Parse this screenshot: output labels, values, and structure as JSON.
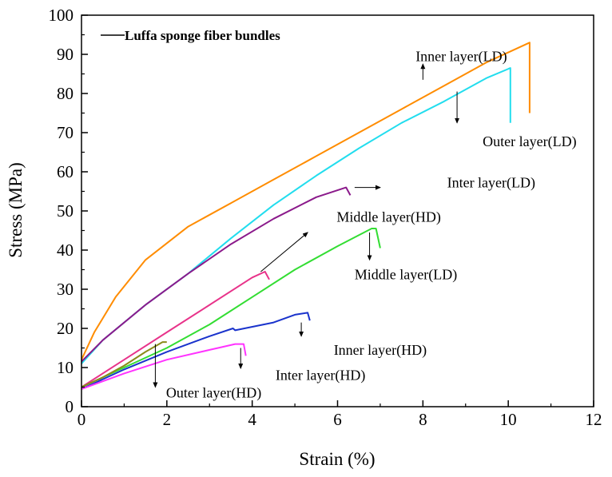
{
  "chart_data": {
    "type": "line",
    "title": "",
    "xlabel": "Strain (%)",
    "ylabel": "Stress (MPa)",
    "xlim": [
      0,
      12
    ],
    "ylim": [
      0,
      100
    ],
    "xticks": [
      0,
      2,
      4,
      6,
      8,
      10,
      12
    ],
    "yticks": [
      0,
      10,
      20,
      30,
      40,
      50,
      60,
      70,
      80,
      90,
      100
    ],
    "grid": false,
    "legend": {
      "position": "top-left",
      "entries": [
        "Luffa sponge fiber bundles"
      ]
    },
    "series": [
      {
        "name": "Inner layer(LD)",
        "color": "#FF8C00",
        "x": [
          0,
          0.3,
          0.8,
          1.5,
          2.5,
          3.5,
          4.5,
          5.5,
          6.5,
          7.5,
          8.5,
          9.5,
          10.5,
          10.5
        ],
        "y": [
          12,
          19,
          28,
          37.5,
          46,
          52,
          58,
          64,
          70,
          76,
          82,
          88,
          93,
          75
        ]
      },
      {
        "name": "Outer layer(LD)",
        "color": "#22DDEE",
        "x": [
          0,
          0.5,
          1.5,
          2.5,
          3.5,
          4.5,
          5.5,
          6.5,
          7.5,
          8.5,
          9.5,
          10.05,
          10.05
        ],
        "y": [
          11,
          17,
          26,
          34,
          43,
          51.5,
          59,
          66,
          72.5,
          78,
          84,
          86.5,
          72.5
        ]
      },
      {
        "name": "Inter layer(LD)",
        "color": "#8B1A8B",
        "x": [
          0,
          0.5,
          1.5,
          2.5,
          3.5,
          4.5,
          5.5,
          6.2,
          6.3
        ],
        "y": [
          11.5,
          17,
          26,
          34,
          41.5,
          48,
          53.5,
          56,
          54
        ]
      },
      {
        "name": "Middle layer(HD)",
        "color": "#E8338A",
        "x": [
          0,
          1,
          2,
          3,
          4,
          4.3,
          4.4
        ],
        "y": [
          5,
          12,
          19,
          26,
          33,
          34.5,
          32.5
        ]
      },
      {
        "name": "Middle layer(LD)",
        "color": "#33DD33",
        "x": [
          0,
          1,
          2,
          3,
          4,
          5,
          6,
          6.8,
          6.9,
          7.0
        ],
        "y": [
          5,
          10,
          15,
          21,
          28,
          35,
          41,
          45.5,
          45.5,
          40.5
        ]
      },
      {
        "name": "Inner layer(HD)",
        "color": "#1A33CC",
        "x": [
          0,
          1,
          2,
          3,
          3.55,
          3.6,
          4.5,
          5.0,
          5.3,
          5.35
        ],
        "y": [
          4.5,
          9.5,
          14,
          18,
          20,
          19.5,
          21.5,
          23.5,
          24,
          22
        ]
      },
      {
        "name": "Inter layer(HD)",
        "color": "#FF33FF",
        "x": [
          0,
          1,
          2,
          3,
          3.2,
          3.6,
          3.8,
          3.85
        ],
        "y": [
          4.5,
          8.5,
          12,
          14.5,
          15,
          16,
          16,
          13
        ]
      },
      {
        "name": "Outer layer(HD)",
        "color": "#8B8B1A",
        "x": [
          0,
          0.5,
          1,
          1.5,
          1.9,
          2.0
        ],
        "y": [
          5,
          7.5,
          10.5,
          14,
          16.5,
          16.5
        ]
      }
    ],
    "annotations": [
      {
        "text": "Luffa sponge fiber bundles",
        "role": "legend"
      },
      {
        "text": "Inner layer(LD)",
        "tx": 8.9,
        "ty": 88.3,
        "arrow": [
          [
            8.0,
            83.5
          ],
          [
            8.0,
            87.5
          ]
        ]
      },
      {
        "text": "Outer layer(LD)",
        "tx": 10.5,
        "ty": 66.5,
        "arrow": [
          [
            8.8,
            80.5
          ],
          [
            8.8,
            72.5
          ]
        ]
      },
      {
        "text": "Inter layer(LD)",
        "tx": 9.6,
        "ty": 56.0,
        "arrow": [
          [
            6.4,
            56.0
          ],
          [
            7.0,
            56.0
          ]
        ]
      },
      {
        "text": "Middle layer(HD)",
        "tx": 7.2,
        "ty": 47.2,
        "arrow": [
          [
            4.2,
            34.5
          ],
          [
            5.3,
            44.5
          ]
        ]
      },
      {
        "text": "Middle layer(LD)",
        "tx": 7.6,
        "ty": 32.6,
        "arrow": [
          [
            6.75,
            44.5
          ],
          [
            6.75,
            37.5
          ]
        ]
      },
      {
        "text": "Inner layer(HD)",
        "tx": 7.0,
        "ty": 13.3,
        "arrow": [
          [
            5.15,
            21.5
          ],
          [
            5.15,
            18.0
          ]
        ]
      },
      {
        "text": "Inter layer(HD)",
        "tx": 5.6,
        "ty": 6.8,
        "arrow": [
          [
            3.73,
            15.0
          ],
          [
            3.73,
            9.8
          ]
        ]
      },
      {
        "text": "Outer layer(HD)",
        "tx": 3.1,
        "ty": 2.3,
        "arrow": [
          [
            1.73,
            16.0
          ],
          [
            1.73,
            5.0
          ]
        ]
      }
    ]
  }
}
